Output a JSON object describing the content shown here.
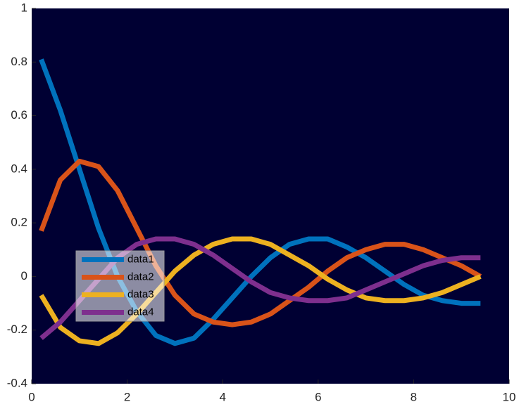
{
  "chart_data": {
    "type": "line",
    "x": [
      0.2,
      0.6,
      1.0,
      1.4,
      1.8,
      2.2,
      2.6,
      3.0,
      3.4,
      3.8,
      4.2,
      4.6,
      5.0,
      5.4,
      5.8,
      6.2,
      6.6,
      7.0,
      7.4,
      7.8,
      8.2,
      8.6,
      9.0,
      9.4
    ],
    "series": [
      {
        "name": "data1",
        "color": "#0072bd",
        "values": [
          0.81,
          0.62,
          0.4,
          0.18,
          0.0,
          -0.13,
          -0.22,
          -0.25,
          -0.23,
          -0.16,
          -0.08,
          0.0,
          0.07,
          0.12,
          0.14,
          0.14,
          0.11,
          0.07,
          0.02,
          -0.03,
          -0.07,
          -0.09,
          -0.1,
          -0.1
        ]
      },
      {
        "name": "data2",
        "color": "#d95319",
        "values": [
          0.17,
          0.36,
          0.43,
          0.41,
          0.32,
          0.18,
          0.04,
          -0.07,
          -0.14,
          -0.17,
          -0.18,
          -0.17,
          -0.14,
          -0.09,
          -0.04,
          0.02,
          0.07,
          0.1,
          0.12,
          0.12,
          0.1,
          0.07,
          0.04,
          0.0
        ]
      },
      {
        "name": "data3",
        "color": "#edb120",
        "values": [
          -0.07,
          -0.19,
          -0.24,
          -0.25,
          -0.21,
          -0.14,
          -0.06,
          0.02,
          0.08,
          0.12,
          0.14,
          0.14,
          0.12,
          0.08,
          0.04,
          -0.01,
          -0.05,
          -0.08,
          -0.09,
          -0.09,
          -0.08,
          -0.06,
          -0.03,
          0.0
        ]
      },
      {
        "name": "data4",
        "color": "#7e2f8e",
        "values": [
          -0.23,
          -0.17,
          -0.09,
          -0.01,
          0.07,
          0.12,
          0.14,
          0.14,
          0.12,
          0.08,
          0.03,
          -0.02,
          -0.06,
          -0.08,
          -0.09,
          -0.09,
          -0.08,
          -0.05,
          -0.02,
          0.01,
          0.04,
          0.06,
          0.07,
          0.07
        ]
      }
    ],
    "xlim": [
      0,
      10
    ],
    "xticks": [
      0,
      2,
      4,
      6,
      8,
      10
    ],
    "ylim": [
      -0.4,
      1
    ],
    "yticks": [
      -0.4,
      -0.2,
      0,
      0.2,
      0.4,
      0.6,
      0.8,
      1
    ],
    "background": "#000033",
    "legend": "center-left"
  }
}
